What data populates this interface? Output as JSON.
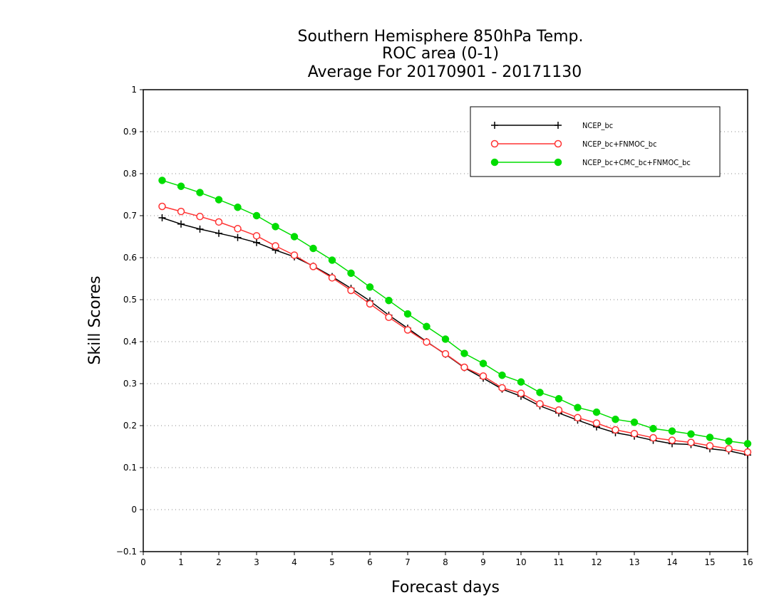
{
  "chart_data": {
    "type": "line",
    "title": [
      "Southern Hemisphere 850hPa Temp.",
      "ROC area (0-1)",
      "Average For 20170901 - 20171130"
    ],
    "xlabel": "Forecast days",
    "ylabel": "Skill Scores",
    "xlim": [
      0,
      16
    ],
    "ylim": [
      -0.1,
      1
    ],
    "xticks": [
      "0",
      "1",
      "2",
      "3",
      "4",
      "5",
      "6",
      "7",
      "8",
      "9",
      "10",
      "11",
      "12",
      "13",
      "14",
      "15",
      "16"
    ],
    "yticks": [
      "−0.1",
      "0",
      "0.1",
      "0.2",
      "0.3",
      "0.4",
      "0.5",
      "0.6",
      "0.7",
      "0.8",
      "0.9",
      "1"
    ],
    "grid": "horizontal dotted",
    "legend_position": "top-right",
    "x": [
      0.5,
      1,
      1.5,
      2,
      2.5,
      3,
      3.5,
      4,
      4.5,
      5,
      5.5,
      6,
      6.5,
      7,
      7.5,
      8,
      8.5,
      9,
      9.5,
      10,
      10.5,
      11,
      11.5,
      12,
      12.5,
      13,
      13.5,
      14,
      14.5,
      15,
      15.5,
      16
    ],
    "series": [
      {
        "name": "NCEP_bc",
        "color": "#000000",
        "marker": "plus",
        "values": [
          0.695,
          0.68,
          0.668,
          0.658,
          0.648,
          0.636,
          0.618,
          0.602,
          0.58,
          0.555,
          0.527,
          0.497,
          0.463,
          0.432,
          0.4,
          0.37,
          0.338,
          0.313,
          0.287,
          0.27,
          0.247,
          0.23,
          0.213,
          0.197,
          0.183,
          0.175,
          0.165,
          0.157,
          0.155,
          0.145,
          0.14,
          0.13
        ]
      },
      {
        "name": "NCEP_bc+FNMOC_bc",
        "color": "#ff3333",
        "marker": "open-circle",
        "values": [
          0.722,
          0.71,
          0.698,
          0.685,
          0.669,
          0.652,
          0.628,
          0.606,
          0.579,
          0.552,
          0.522,
          0.49,
          0.458,
          0.428,
          0.399,
          0.371,
          0.339,
          0.318,
          0.29,
          0.277,
          0.252,
          0.237,
          0.219,
          0.206,
          0.19,
          0.181,
          0.171,
          0.165,
          0.16,
          0.152,
          0.145,
          0.137
        ]
      },
      {
        "name": "NCEP_bc+CMC_bc+FNMOC_bc",
        "color": "#00dd00",
        "marker": "filled-circle",
        "values": [
          0.784,
          0.77,
          0.755,
          0.738,
          0.72,
          0.7,
          0.674,
          0.65,
          0.622,
          0.594,
          0.563,
          0.53,
          0.498,
          0.466,
          0.436,
          0.406,
          0.372,
          0.348,
          0.32,
          0.304,
          0.279,
          0.264,
          0.243,
          0.232,
          0.215,
          0.208,
          0.193,
          0.187,
          0.18,
          0.172,
          0.163,
          0.157
        ]
      }
    ]
  }
}
